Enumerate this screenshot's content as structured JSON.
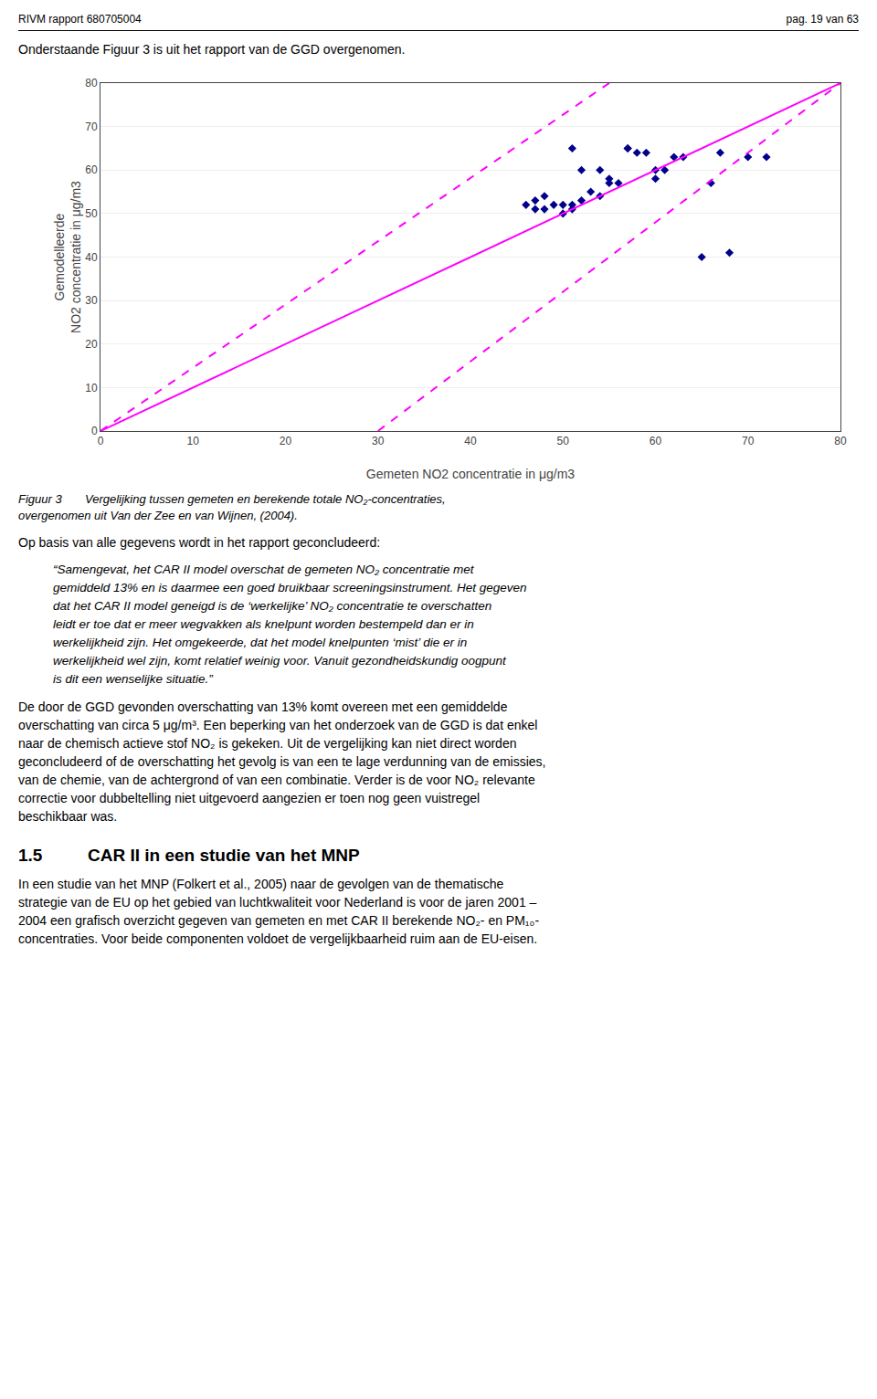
{
  "chart_data": {
    "type": "scatter",
    "x_label": "Gemeten NO2 concentratie in μg/m3",
    "y_label": "Gemodelleerde\nNO2 concentratie in μg/m3",
    "xlim": [
      0,
      80
    ],
    "ylim": [
      0,
      80
    ],
    "xticks": [
      0,
      10,
      20,
      30,
      40,
      50,
      60,
      70,
      80
    ],
    "yticks": [
      0,
      10,
      20,
      30,
      40,
      50,
      60,
      70,
      80
    ],
    "grid": "y",
    "series": [
      {
        "type": "scatter",
        "color": "#00008B",
        "marker": "diamond",
        "x": [
          46,
          47,
          47,
          48,
          48,
          49,
          50,
          50,
          51,
          51,
          51,
          52,
          52,
          53,
          54,
          54,
          55,
          55,
          56,
          57,
          57,
          58,
          59,
          60,
          60,
          61,
          62,
          63,
          65,
          66,
          67,
          68,
          70,
          72
        ],
        "values": [
          52,
          51,
          53,
          51,
          54,
          52,
          50,
          52,
          51,
          52,
          65,
          53,
          60,
          55,
          54,
          60,
          57,
          58,
          57,
          65,
          65,
          64,
          64,
          58,
          60,
          60,
          63,
          63,
          40,
          57,
          64,
          41,
          63,
          63
        ]
      },
      {
        "type": "line",
        "color": "#FF00FF",
        "line_style": "solid",
        "x": [
          0,
          80
        ],
        "values": [
          0,
          80
        ]
      },
      {
        "type": "line",
        "color": "#FF00FF",
        "line_style": "dashed",
        "x": [
          30,
          80
        ],
        "values": [
          0,
          80
        ]
      },
      {
        "type": "line",
        "color": "#FF00FF",
        "line_style": "dashed",
        "x": [
          0,
          55
        ],
        "values": [
          0,
          80
        ]
      }
    ],
    "annotations": [
      "RIVM rapport 680705004",
      "pag. 19 van 63",
      "Onderstaande Figuur 3 is uit het rapport van de GGD overgenomen.",
      "Figuur 3       Vergelijking tussen gemeten en berekende totale NO₂-concentraties,\novergenomen uit Van der Zee en van Wijnen, (2004).",
      "Op basis van alle gegevens wordt in het rapport geconcludeerd:",
      "“Samengevat, het CAR II model overschat de gemeten NO₂ concentratie met\ngemiddeld 13% en is daarmee een goed bruikbaar screeningsinstrument. Het gegeven\ndat het CAR II model geneigd is de ‘werkelijke’ NO₂ concentratie te overschatten\nleidt er toe dat er meer wegvakken als knelpunt worden bestempeld dan er in\nwerkelijkheid zijn. Het omgekeerde, dat het model knelpunten ‘mist’ die er in\nwerkelijkheid wel zijn, komt relatief weinig voor. Vanuit gezondheidskundig oogpunt\nis dit een wenselijke situatie.”",
      "De door de GGD gevonden overschatting van 13% komt overeen met een gemiddelde\noverschatting van circa 5 μg/m³. Een beperking van het onderzoek van de GGD is dat enkel\nnaar de chemisch actieve stof NO₂ is gekeken. Uit de vergelijking kan niet direct worden\ngeconcludeerd of de overschatting het gevolg is van een te lage verdunning van de emissies,\nvan de chemie, van de achtergrond of van een combinatie. Verder is de voor NO₂ relevante\ncorrectie voor dubbeltelling niet uitgevoerd aangezien er toen nog geen vuistregel\nbeschikbaar was.",
      "1.5",
      "CAR II in een studie van het MNP",
      "In een studie van het MNP (Folkert et al., 2005) naar de gevolgen van de thematische\nstrategie van de EU op het gebied van luchtkwaliteit voor Nederland is voor de jaren 2001 –\n2004 een grafisch overzicht gegeven van gemeten en met CAR II berekende NO₂- en PM₁₀-\nconcentraties. Voor beide componenten voldoet de vergelijkbaarheid ruim aan de EU-eisen."
    ]
  }
}
